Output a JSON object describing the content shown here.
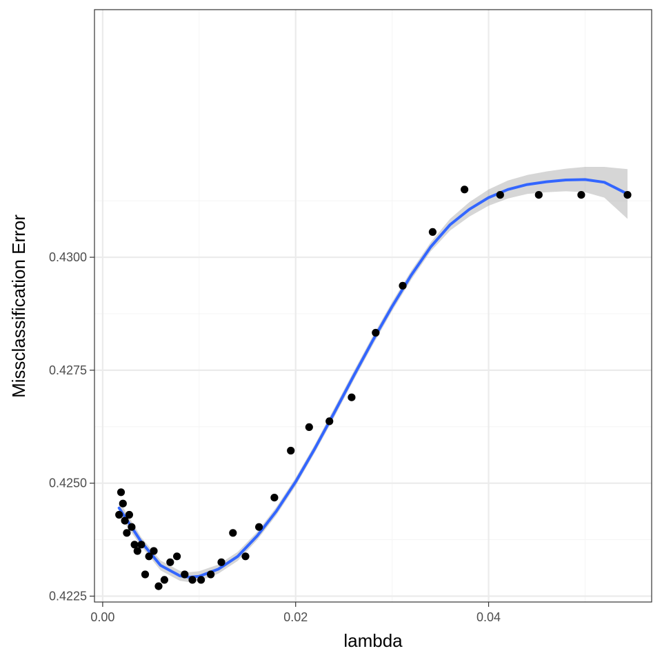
{
  "chart_data": {
    "type": "scatter",
    "title": "",
    "xlabel": "lambda",
    "ylabel": "Missclassification Error",
    "xlim": [
      -0.00085,
      0.0569
    ],
    "ylim": [
      0.42237,
      0.43548
    ],
    "x_ticks": [
      0.0,
      0.02,
      0.04
    ],
    "x_tick_labels": [
      "0.00",
      "0.02",
      "0.04"
    ],
    "y_ticks": [
      0.4225,
      0.425,
      0.4275,
      0.43
    ],
    "y_tick_labels": [
      "0.4225",
      "0.4250",
      "0.4275",
      "0.4300"
    ],
    "grid": true,
    "legend": "none",
    "colors": {
      "points": "#000000",
      "smooth_line": "#3366ff",
      "confidence_band": "#999999",
      "grid_major": "#ebebeb",
      "grid_minor": "#f5f5f5",
      "panel_border": "#333333"
    },
    "points": [
      {
        "x": 0.0017,
        "y": 0.4243
      },
      {
        "x": 0.0019,
        "y": 0.4248
      },
      {
        "x": 0.0021,
        "y": 0.42455
      },
      {
        "x": 0.0023,
        "y": 0.42417
      },
      {
        "x": 0.0025,
        "y": 0.4239
      },
      {
        "x": 0.00275,
        "y": 0.4243
      },
      {
        "x": 0.003,
        "y": 0.42403
      },
      {
        "x": 0.0033,
        "y": 0.42364
      },
      {
        "x": 0.0036,
        "y": 0.4235
      },
      {
        "x": 0.004,
        "y": 0.42364
      },
      {
        "x": 0.0044,
        "y": 0.42298
      },
      {
        "x": 0.0048,
        "y": 0.42338
      },
      {
        "x": 0.0053,
        "y": 0.4235
      },
      {
        "x": 0.0058,
        "y": 0.42272
      },
      {
        "x": 0.0064,
        "y": 0.42286
      },
      {
        "x": 0.007,
        "y": 0.42325
      },
      {
        "x": 0.0077,
        "y": 0.42338
      },
      {
        "x": 0.0085,
        "y": 0.42298
      },
      {
        "x": 0.0093,
        "y": 0.42286
      },
      {
        "x": 0.0102,
        "y": 0.42286
      },
      {
        "x": 0.0112,
        "y": 0.42298
      },
      {
        "x": 0.0123,
        "y": 0.42325
      },
      {
        "x": 0.0135,
        "y": 0.4239
      },
      {
        "x": 0.0148,
        "y": 0.42338
      },
      {
        "x": 0.0162,
        "y": 0.42403
      },
      {
        "x": 0.0178,
        "y": 0.42468
      },
      {
        "x": 0.0195,
        "y": 0.42572
      },
      {
        "x": 0.0214,
        "y": 0.42624
      },
      {
        "x": 0.0235,
        "y": 0.42637
      },
      {
        "x": 0.0258,
        "y": 0.4269
      },
      {
        "x": 0.0283,
        "y": 0.42833
      },
      {
        "x": 0.0311,
        "y": 0.42937
      },
      {
        "x": 0.0342,
        "y": 0.43056
      },
      {
        "x": 0.0375,
        "y": 0.4315
      },
      {
        "x": 0.0412,
        "y": 0.43138
      },
      {
        "x": 0.0452,
        "y": 0.43138
      },
      {
        "x": 0.0496,
        "y": 0.43138
      },
      {
        "x": 0.0544,
        "y": 0.43138
      }
    ],
    "smooth": {
      "x": [
        0.0017,
        0.004,
        0.006,
        0.008,
        0.009,
        0.01,
        0.012,
        0.014,
        0.016,
        0.018,
        0.02,
        0.022,
        0.024,
        0.026,
        0.028,
        0.03,
        0.032,
        0.034,
        0.036,
        0.038,
        0.04,
        0.042,
        0.044,
        0.046,
        0.048,
        0.05,
        0.052,
        0.0544
      ],
      "y": [
        0.42445,
        0.4237,
        0.42318,
        0.42295,
        0.42292,
        0.42294,
        0.4231,
        0.42338,
        0.42383,
        0.42438,
        0.42503,
        0.42577,
        0.42656,
        0.42737,
        0.42816,
        0.42891,
        0.42961,
        0.43023,
        0.43072,
        0.43106,
        0.43132,
        0.4315,
        0.43161,
        0.43167,
        0.43171,
        0.43172,
        0.43166,
        0.4314
      ],
      "upper": [
        0.42461,
        0.4238,
        0.42329,
        0.42306,
        0.42303,
        0.42305,
        0.4232,
        0.42348,
        0.42392,
        0.42447,
        0.42512,
        0.42586,
        0.42666,
        0.42747,
        0.42826,
        0.42901,
        0.42971,
        0.43033,
        0.43085,
        0.43122,
        0.4315,
        0.4317,
        0.43182,
        0.4319,
        0.43196,
        0.432,
        0.432,
        0.43195
      ],
      "lower": [
        0.42429,
        0.4236,
        0.42307,
        0.42284,
        0.42281,
        0.42283,
        0.423,
        0.42328,
        0.42374,
        0.42429,
        0.42494,
        0.42568,
        0.42646,
        0.42727,
        0.42806,
        0.42881,
        0.42951,
        0.43013,
        0.43059,
        0.4309,
        0.43114,
        0.4313,
        0.4314,
        0.43144,
        0.43146,
        0.43144,
        0.43132,
        0.43085
      ]
    }
  }
}
